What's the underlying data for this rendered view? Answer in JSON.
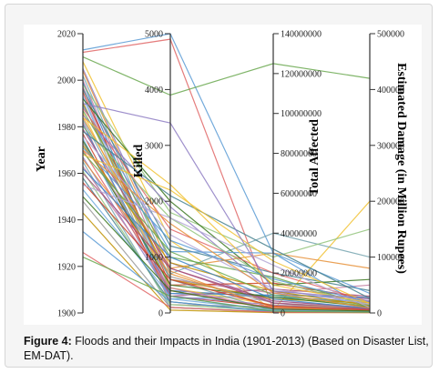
{
  "caption": {
    "label": "Figure 4:",
    "text": " Floods and their Impacts in India (1901-2013) (Based on Disaster List, EM-DAT)."
  },
  "chart_data": {
    "type": "parallel-coordinates",
    "axes": [
      {
        "label": "Year",
        "min": 1900,
        "max": 2020,
        "ticks": [
          1900,
          1920,
          1940,
          1960,
          1980,
          2000,
          2020
        ],
        "tick_side": "left"
      },
      {
        "label": "Killed",
        "min": 0,
        "max": 5000,
        "ticks": [
          0,
          1000,
          2000,
          3000,
          4000,
          5000
        ],
        "tick_side": "left"
      },
      {
        "label": "Total Affected",
        "min": 0,
        "max": 140000000,
        "ticks": [
          0,
          20000000,
          40000000,
          60000000,
          80000000,
          100000000,
          120000000,
          140000000
        ],
        "tick_side": "right"
      },
      {
        "label": "Estimated Damage  (in Million Rupees)",
        "min": 0,
        "max": 500000,
        "ticks": [
          0,
          100000,
          200000,
          300000,
          400000,
          500000
        ],
        "tick_side": "right"
      }
    ],
    "series": [
      {
        "values": [
          2013,
          5000,
          30000000,
          5000
        ]
      },
      {
        "values": [
          2012,
          4900,
          2000000,
          1000
        ]
      },
      {
        "values": [
          2010,
          3900,
          125000000,
          420000
        ]
      },
      {
        "values": [
          2008,
          1300,
          1500000,
          200000
        ]
      },
      {
        "values": [
          2005,
          900,
          5000000,
          3000
        ]
      },
      {
        "values": [
          2004,
          800,
          30000000,
          80000
        ]
      },
      {
        "values": [
          2002,
          700,
          40000000,
          100000
        ]
      },
      {
        "values": [
          2000,
          600,
          10000000,
          50000
        ]
      },
      {
        "values": [
          1999,
          400,
          8000000,
          20000
        ]
      },
      {
        "values": [
          1998,
          1800,
          28000000,
          150000
        ]
      },
      {
        "values": [
          1997,
          300,
          12000000,
          30000
        ]
      },
      {
        "values": [
          1996,
          1200,
          20000000,
          40000
        ]
      },
      {
        "values": [
          1995,
          500,
          15000000,
          25000
        ]
      },
      {
        "values": [
          1994,
          350,
          6000000,
          10000
        ]
      },
      {
        "values": [
          1993,
          250,
          9000000,
          15000
        ]
      },
      {
        "values": [
          1992,
          2000,
          14000000,
          60000
        ]
      },
      {
        "values": [
          1991,
          150,
          3000000,
          5000
        ]
      },
      {
        "values": [
          1990,
          600,
          7000000,
          18000
        ]
      },
      {
        "values": [
          1989,
          1100,
          30000000,
          35000
        ]
      },
      {
        "values": [
          1988,
          1500,
          20000000,
          20000
        ]
      },
      {
        "values": [
          1987,
          1000,
          18000000,
          12000
        ]
      },
      {
        "values": [
          1986,
          450,
          4000000,
          8000
        ]
      },
      {
        "values": [
          1985,
          1900,
          10000000,
          22000
        ]
      },
      {
        "values": [
          1984,
          750,
          2000000,
          6000
        ]
      },
      {
        "values": [
          1983,
          600,
          1000000,
          4000
        ]
      },
      {
        "values": [
          1982,
          200,
          500000,
          2000
        ]
      },
      {
        "values": [
          1981,
          350,
          9000000,
          28000
        ]
      },
      {
        "values": [
          1980,
          1700,
          16000000,
          14000
        ]
      },
      {
        "values": [
          1979,
          800,
          6000000,
          9000
        ]
      },
      {
        "values": [
          1978,
          2100,
          32000000,
          26000
        ]
      },
      {
        "values": [
          1977,
          300,
          3000000,
          7000
        ]
      },
      {
        "values": [
          1976,
          1400,
          12000000,
          16000
        ]
      },
      {
        "values": [
          1975,
          250,
          1500000,
          3000
        ]
      },
      {
        "values": [
          1974,
          500,
          8000000,
          11000
        ]
      },
      {
        "values": [
          1973,
          650,
          5000000,
          9000
        ]
      },
      {
        "values": [
          1972,
          900,
          11000000,
          13000
        ]
      },
      {
        "values": [
          1971,
          1300,
          17000000,
          19000
        ]
      },
      {
        "values": [
          1970,
          400,
          2500000,
          6000
        ]
      },
      {
        "values": [
          1969,
          1100,
          9000000,
          12000
        ]
      },
      {
        "values": [
          1968,
          2200,
          26000000,
          17000
        ]
      },
      {
        "values": [
          1967,
          300,
          4000000,
          5000
        ]
      },
      {
        "values": [
          1966,
          700,
          3000000,
          4000
        ]
      },
      {
        "values": [
          1965,
          100,
          500000,
          1000
        ]
      },
      {
        "values": [
          1963,
          450,
          2000000,
          3000
        ]
      },
      {
        "values": [
          1962,
          1000,
          7000000,
          8000
        ]
      },
      {
        "values": [
          1961,
          150,
          1000000,
          2000
        ]
      },
      {
        "values": [
          1960,
          800,
          5000000,
          7000
        ]
      },
      {
        "values": [
          1958,
          200,
          800000,
          1500
        ]
      },
      {
        "values": [
          1956,
          600,
          3500000,
          5000
        ]
      },
      {
        "values": [
          1955,
          1700,
          24000000,
          10000
        ]
      },
      {
        "values": [
          1953,
          300,
          1200000,
          2500
        ]
      },
      {
        "values": [
          1950,
          400,
          2000000,
          3500
        ]
      },
      {
        "values": [
          1948,
          100,
          300000,
          800
        ]
      },
      {
        "values": [
          1943,
          50,
          200000,
          500
        ]
      },
      {
        "values": [
          1935,
          200,
          600000,
          1000
        ]
      },
      {
        "values": [
          1926,
          100,
          400000,
          600
        ]
      },
      {
        "values": [
          1924,
          300,
          900000,
          1200
        ]
      },
      {
        "values": [
          1984,
          2300,
          14000000,
          18000
        ]
      },
      {
        "values": [
          1990,
          3400,
          11000000,
          25000
        ]
      },
      {
        "values": [
          1970,
          1600,
          10000000,
          9000
        ]
      }
    ]
  }
}
